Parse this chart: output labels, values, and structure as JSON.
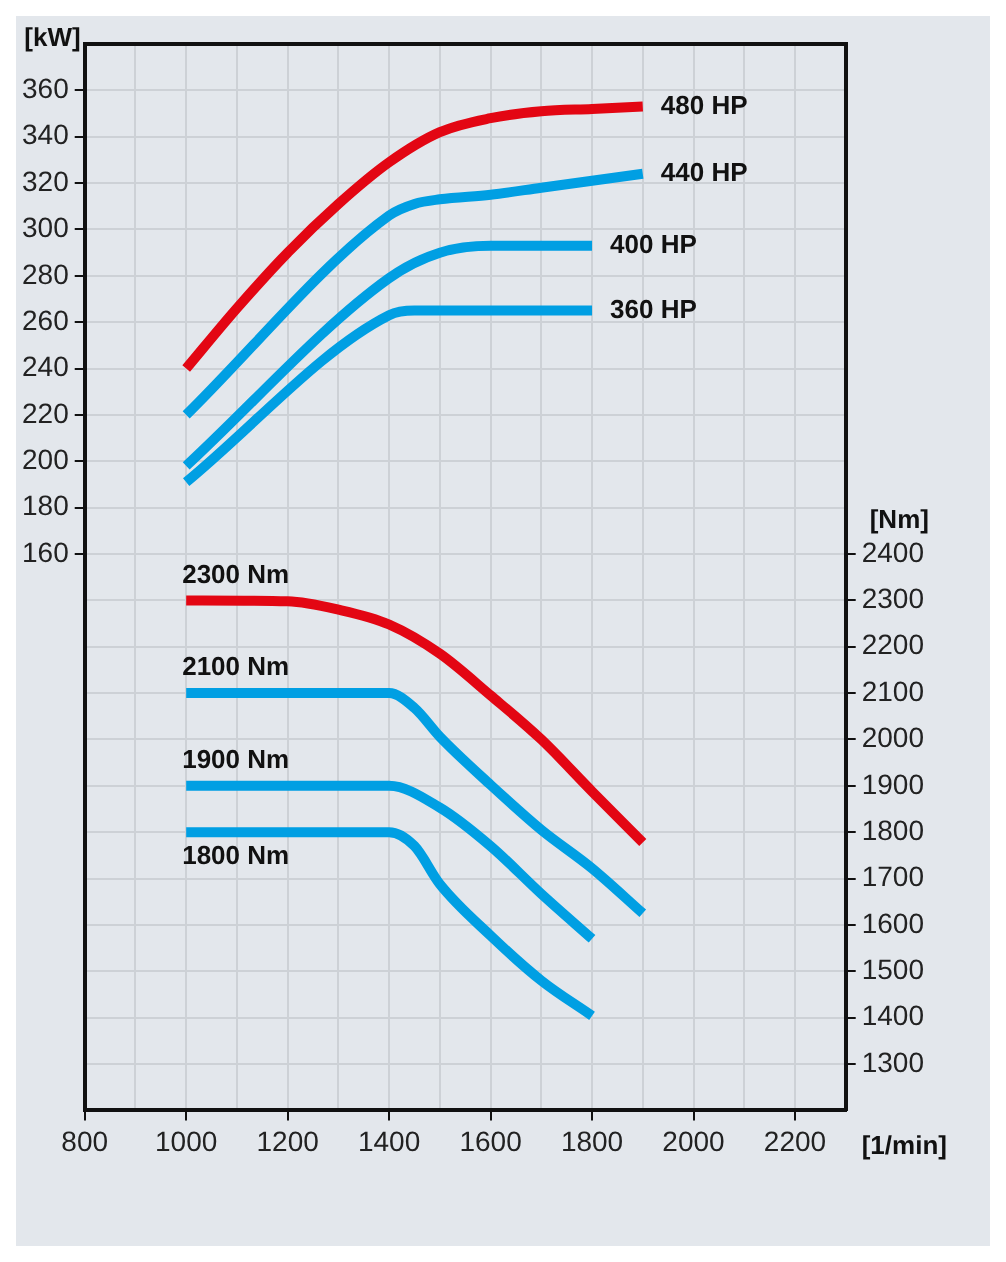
{
  "chart_data": {
    "type": "line",
    "xlabel": "[1/min]",
    "ylabel": "[kW]",
    "y2label": "[Nm]",
    "xlim": [
      800,
      2300
    ],
    "xticks": [
      800,
      {
        "value": 900,
        "label": null
      },
      1000,
      {
        "value": 1100,
        "label": null
      },
      1200,
      {
        "value": 1300,
        "label": null
      },
      1400,
      {
        "value": 1500,
        "label": null
      },
      1600,
      {
        "value": 1700,
        "label": null
      },
      1800,
      {
        "value": 1900,
        "label": null
      },
      2000,
      {
        "value": 2100,
        "label": null
      },
      2200
    ],
    "ylim": [
      -80,
      380
    ],
    "yticks": [
      160,
      180,
      200,
      220,
      240,
      260,
      280,
      300,
      320,
      340,
      360
    ],
    "y2lim": [
      1200,
      3500
    ],
    "y2ticks": [
      1300,
      1400,
      1500,
      1600,
      1700,
      1800,
      1900,
      2000,
      2100,
      2200,
      2300,
      2400,
      {
        "value": 2500,
        "label": null
      },
      {
        "value": 2600,
        "label": null
      },
      {
        "value": 2700,
        "label": null
      },
      {
        "value": 2800,
        "label": null
      },
      {
        "value": 2900,
        "label": null
      },
      {
        "value": 3000,
        "label": null
      },
      {
        "value": 3100,
        "label": null
      },
      {
        "value": 3200,
        "label": null
      },
      {
        "value": 3300,
        "label": null
      },
      {
        "value": 3400,
        "label": null
      }
    ],
    "grid": true,
    "legend": false,
    "marker": "none",
    "line_style": "solid",
    "series": [
      {
        "name": "480 HP",
        "color": "#e30613",
        "x": [
          1000,
          1100,
          1200,
          1300,
          1400,
          1500,
          1600,
          1700,
          1800,
          1900
        ],
        "values": [
          240,
          266,
          290,
          311,
          329,
          342,
          348,
          351,
          352,
          353
        ]
      },
      {
        "name": "440 HP",
        "color": "#009fe3",
        "x": [
          1000,
          1400,
          1450,
          1500,
          1600,
          1700,
          1800,
          1900
        ],
        "values": [
          220,
          306,
          311,
          313,
          315,
          318,
          321,
          324
        ]
      },
      {
        "name": "400 HP",
        "color": "#009fe3",
        "x": [
          1000,
          1400,
          1500,
          1600,
          1800
        ],
        "values": [
          198,
          279,
          290,
          293,
          293
        ]
      },
      {
        "name": "360 HP",
        "color": "#009fe3",
        "x": [
          1000,
          1400,
          1450,
          1800
        ],
        "values": [
          191,
          263,
          265,
          265
        ]
      },
      {
        "name": "2300 Nm",
        "color": "#e30613",
        "axis": "y2",
        "x": [
          1000,
          1200,
          1300,
          1400,
          1500,
          1600,
          1700,
          1800,
          1900
        ],
        "values": [
          2300,
          2298,
          2280,
          2248,
          2185,
          2095,
          2000,
          1888,
          1778
        ]
      },
      {
        "name": "2100 Nm",
        "color": "#009fe3",
        "axis": "y2",
        "x": [
          1000,
          1400,
          1450,
          1500,
          1600,
          1700,
          1800,
          1900
        ],
        "values": [
          2100,
          2100,
          2068,
          2006,
          1902,
          1805,
          1722,
          1625
        ]
      },
      {
        "name": "1900 Nm",
        "color": "#009fe3",
        "axis": "y2",
        "x": [
          1000,
          1400,
          1500,
          1600,
          1700,
          1800
        ],
        "values": [
          1900,
          1900,
          1853,
          1770,
          1667,
          1570
        ]
      },
      {
        "name": "1800 Nm",
        "color": "#009fe3",
        "axis": "y2",
        "x": [
          1000,
          1400,
          1450,
          1500,
          1600,
          1700,
          1800
        ],
        "values": [
          1800,
          1800,
          1770,
          1688,
          1577,
          1480,
          1404
        ]
      }
    ]
  }
}
